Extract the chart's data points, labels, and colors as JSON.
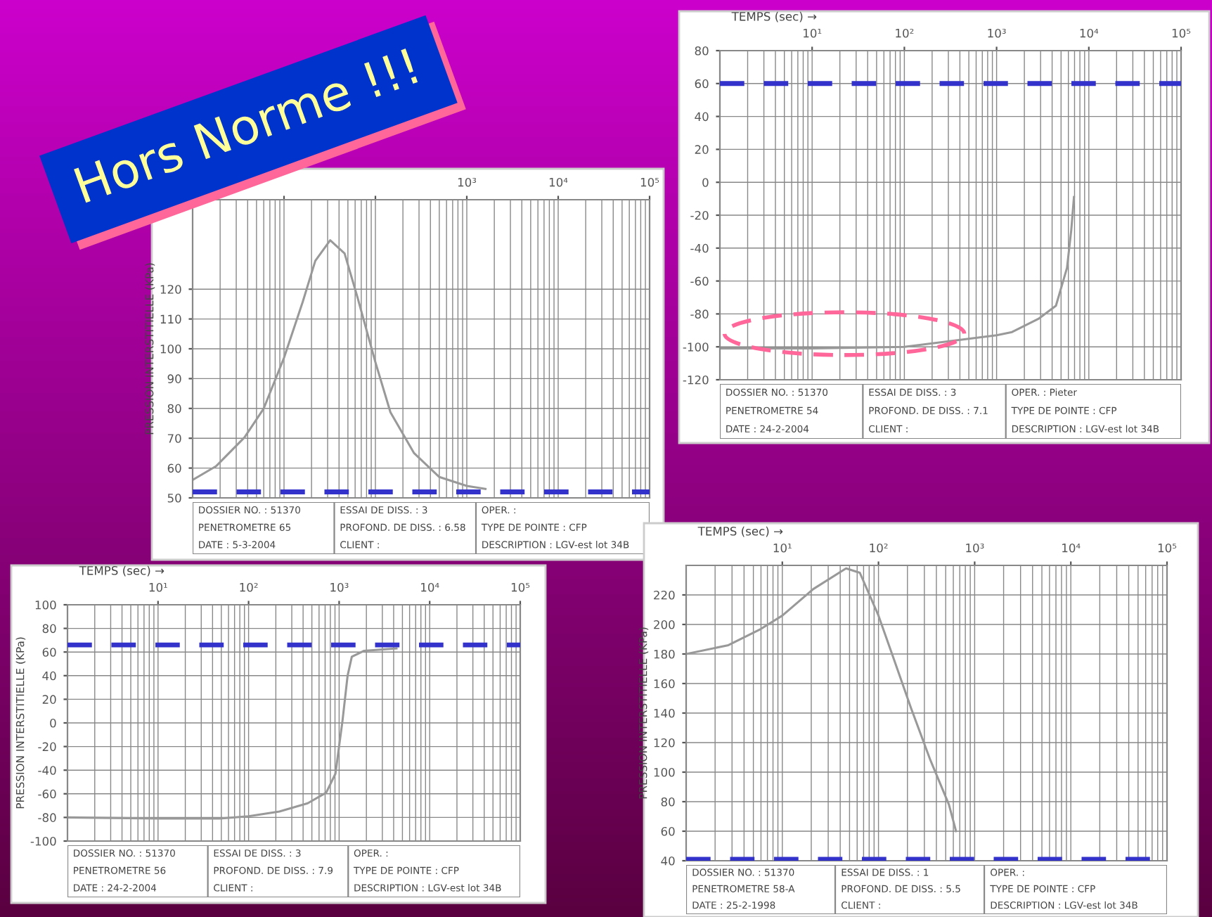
{
  "chart_data": [
    {
      "type": "line",
      "title": "Hors Norme !!!",
      "xlabel": "TEMPS (sec) →",
      "log": "x",
      "grid": true,
      "line_style": "solid",
      "marker": "none",
      "xlim": [
        1,
        100000
      ],
      "xticks": [
        {
          "value": 10,
          "label": "10¹"
        },
        {
          "value": 100,
          "label": "10²"
        },
        {
          "value": 1000,
          "label": "10³"
        },
        {
          "value": 10000,
          "label": "10⁴"
        },
        {
          "value": 100000,
          "label": "10⁵"
        }
      ],
      "ylim": [
        -120,
        80
      ],
      "yticks": [
        -120,
        -100,
        -80,
        -60,
        -40,
        -20,
        0,
        20,
        40,
        60,
        80
      ],
      "series": [
        {
          "color": "#999999",
          "x": [
            1,
            10,
            100,
            1000,
            1470,
            2840,
            4400,
            5800,
            6450,
            6900
          ],
          "values": [
            -101,
            -101,
            -100,
            -93,
            -91,
            -83,
            -75,
            -52,
            -29,
            -9
          ]
        }
      ],
      "ref_lines": [
        {
          "axis": "y",
          "value": 60,
          "color": "#3333cc",
          "line_style": "dashed"
        }
      ],
      "annotations": [
        "DOSSIER NO. : 51370",
        "PENETROMETRE 54",
        "DATE : 24-2-2004",
        "ESSAI DE DISS. : 3",
        "PROFOND. DE DISS. : 7.1",
        "CLIENT :",
        "OPER. : Pieter",
        "TYPE DE POINTE : CFP",
        "DESCRIPTION : LGV-est lot 34B"
      ]
    },
    {
      "type": "line",
      "ylabel": "PRESSION INTERSTITIELLE (KPa)",
      "log": "x",
      "grid": true,
      "line_style": "solid",
      "marker": "none",
      "xlim": [
        1,
        100000
      ],
      "xticks": [
        {
          "value": 10,
          "label": null
        },
        {
          "value": 100,
          "label": null
        },
        {
          "value": 1000,
          "label": "10³"
        },
        {
          "value": 10000,
          "label": "10⁴"
        },
        {
          "value": 100000,
          "label": "10⁵"
        }
      ],
      "ylim": [
        50,
        150
      ],
      "yticks": [
        50,
        60,
        70,
        80,
        90,
        100,
        110,
        120
      ],
      "series": [
        {
          "color": "#999999",
          "x": [
            1,
            1.8,
            3.7,
            6,
            10,
            16,
            22,
            32,
            46,
            64,
            100,
            146,
            265,
            500,
            1000,
            1600
          ],
          "values": [
            56,
            60.6,
            70.3,
            80,
            97,
            115.7,
            129.5,
            136.4,
            132,
            117,
            95.5,
            78.7,
            65,
            57,
            54,
            53
          ]
        }
      ],
      "ref_lines": [
        {
          "axis": "y",
          "value": 52,
          "color": "#3333cc",
          "line_style": "dashed"
        }
      ],
      "annotations": [
        "DOSSIER NO. : 51370",
        "PENETROMETRE 65",
        "DATE : 5-3-2004",
        "ESSAI DE DISS. : 3",
        "PROFOND. DE DISS. : 6.58",
        "CLIENT :",
        "OPER. :",
        "TYPE DE POINTE : CFP",
        "DESCRIPTION : LGV-est lot 34B"
      ]
    },
    {
      "type": "line",
      "xlabel": "TEMPS (sec) →",
      "ylabel": "PRESSION INTERSTITIELLE (KPa)",
      "log": "x",
      "grid": true,
      "line_style": "solid",
      "marker": "none",
      "xlim": [
        1,
        100000
      ],
      "xticks": [
        {
          "value": 10,
          "label": "10¹"
        },
        {
          "value": 100,
          "label": "10²"
        },
        {
          "value": 1000,
          "label": "10³"
        },
        {
          "value": 10000,
          "label": "10⁴"
        },
        {
          "value": 100000,
          "label": "10⁵"
        }
      ],
      "ylim": [
        -100,
        100
      ],
      "yticks": [
        -100,
        -80,
        -60,
        -40,
        -20,
        0,
        20,
        40,
        60,
        80,
        100
      ],
      "series": [
        {
          "color": "#999999",
          "x": [
            1,
            10,
            48,
            100,
            219,
            450,
            720,
            910,
            1090,
            1240,
            1380,
            1870,
            4300
          ],
          "values": [
            -80,
            -81,
            -81,
            -79,
            -75,
            -68,
            -59,
            -43,
            2,
            40,
            56,
            61,
            63
          ]
        }
      ],
      "ref_lines": [
        {
          "axis": "y",
          "value": 66,
          "color": "#3333cc",
          "line_style": "dashed"
        }
      ],
      "annotations": [
        "DOSSIER NO. : 51370",
        "PENETROMETRE 56",
        "DATE : 24-2-2004",
        "ESSAI DE DISS. : 3",
        "PROFOND. DE DISS. : 7.9",
        "CLIENT :",
        "OPER. :",
        "TYPE DE POINTE : CFP",
        "DESCRIPTION : LGV-est lot 34B"
      ]
    },
    {
      "type": "line",
      "xlabel": "TEMPS (sec) →",
      "ylabel": "PRESSION INTERSTITIELLE (KPa)",
      "log": "x",
      "grid": true,
      "line_style": "solid",
      "marker": "none",
      "xlim": [
        1,
        100000
      ],
      "xticks": [
        {
          "value": 10,
          "label": "10¹"
        },
        {
          "value": 100,
          "label": "10²"
        },
        {
          "value": 1000,
          "label": "10³"
        },
        {
          "value": 10000,
          "label": "10⁴"
        },
        {
          "value": 100000,
          "label": "10⁵"
        }
      ],
      "ylim": [
        40,
        240
      ],
      "yticks": [
        40,
        60,
        80,
        100,
        120,
        140,
        160,
        180,
        200,
        220
      ],
      "series": [
        {
          "color": "#999999",
          "x": [
            1,
            2.75,
            6,
            10,
            21,
            46,
            64,
            100,
            140,
            219,
            347,
            540,
            640
          ],
          "values": [
            180,
            186,
            197,
            206,
            224,
            238,
            235,
            206,
            179,
            143,
            108,
            78,
            60
          ]
        }
      ],
      "ref_lines": [
        {
          "axis": "y",
          "value": 41,
          "color": "#3333cc",
          "line_style": "dashed"
        }
      ],
      "annotations": [
        "DOSSIER NO. : 51370",
        "PENETROMETRE 58-A",
        "DATE : 25-2-1998",
        "ESSAI DE DISS. : 1",
        "PROFOND. DE DISS. : 5.5",
        "CLIENT :",
        "OPER. :",
        "TYPE DE POINTE : CFP",
        "DESCRIPTION : LGV-est lot 34B"
      ]
    }
  ]
}
